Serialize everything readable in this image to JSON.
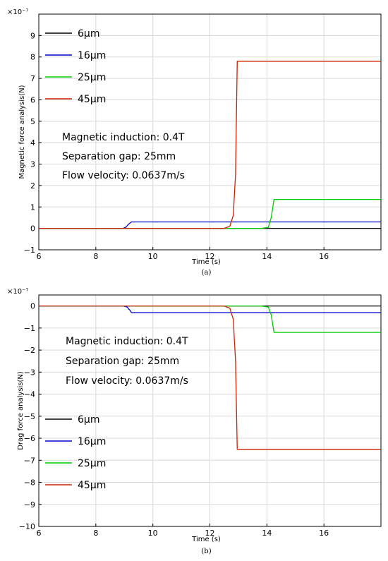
{
  "chart_data": [
    {
      "type": "line",
      "caption": "(a)",
      "xlabel": "Time (s)",
      "ylabel": "Magnetic force analysis(N)",
      "y_multiplier": "×10⁻⁷",
      "xlim": [
        6,
        18
      ],
      "ylim": [
        -1,
        10
      ],
      "xticks": [
        6,
        8,
        10,
        12,
        14,
        16
      ],
      "yticks": [
        -1,
        0,
        1,
        2,
        3,
        4,
        5,
        6,
        7,
        8,
        9
      ],
      "grid": true,
      "legend_position": "top-left",
      "annotations": [
        "Magnetic induction: 0.4T",
        "Separation gap: 25mm",
        "Flow velocity: 0.0637m/s"
      ],
      "series": [
        {
          "name": "6μm",
          "color": "#000000",
          "points": [
            [
              6,
              0
            ],
            [
              18,
              0
            ]
          ]
        },
        {
          "name": "16μm",
          "color": "#0000cc",
          "points": [
            [
              6,
              0
            ],
            [
              8.95,
              0
            ],
            [
              9.05,
              0.05
            ],
            [
              9.15,
              0.2
            ],
            [
              9.25,
              0.3
            ],
            [
              18,
              0.3
            ]
          ]
        },
        {
          "name": "25μm",
          "color": "#00cc00",
          "points": [
            [
              6,
              0
            ],
            [
              13.8,
              0
            ],
            [
              14.05,
              0.05
            ],
            [
              14.15,
              0.5
            ],
            [
              14.25,
              1.35
            ],
            [
              18,
              1.35
            ]
          ]
        },
        {
          "name": "45μm",
          "color": "#cc2200",
          "points": [
            [
              6,
              0
            ],
            [
              12.5,
              0
            ],
            [
              12.7,
              0.1
            ],
            [
              12.82,
              0.6
            ],
            [
              12.9,
              2.5
            ],
            [
              12.96,
              7.8
            ],
            [
              18,
              7.8
            ]
          ]
        }
      ]
    },
    {
      "type": "line",
      "caption": "(b)",
      "xlabel": "Time (s)",
      "ylabel": "Drag force analysis(N)",
      "y_multiplier": "×10⁻⁷",
      "xlim": [
        6,
        18
      ],
      "ylim": [
        -10,
        0.5
      ],
      "xticks": [
        6,
        8,
        10,
        12,
        14,
        16
      ],
      "yticks": [
        -10,
        -9,
        -8,
        -7,
        -6,
        -5,
        -4,
        -3,
        -2,
        -1,
        0
      ],
      "grid": true,
      "legend_position": "center-left",
      "annotations": [
        "Magnetic induction: 0.4T",
        "Separation gap: 25mm",
        "Flow velocity: 0.0637m/s"
      ],
      "series": [
        {
          "name": "6μm",
          "color": "#000000",
          "points": [
            [
              6,
              0
            ],
            [
              18,
              0
            ]
          ]
        },
        {
          "name": "16μm",
          "color": "#0000cc",
          "points": [
            [
              6,
              0
            ],
            [
              8.95,
              0
            ],
            [
              9.1,
              -0.05
            ],
            [
              9.2,
              -0.2
            ],
            [
              9.25,
              -0.3
            ],
            [
              18,
              -0.3
            ]
          ]
        },
        {
          "name": "25μm",
          "color": "#00cc00",
          "points": [
            [
              6,
              0
            ],
            [
              13.8,
              0
            ],
            [
              14.05,
              -0.05
            ],
            [
              14.15,
              -0.4
            ],
            [
              14.25,
              -1.2
            ],
            [
              18,
              -1.2
            ]
          ]
        },
        {
          "name": "45μm",
          "color": "#cc2200",
          "points": [
            [
              6,
              0
            ],
            [
              12.5,
              0
            ],
            [
              12.7,
              -0.1
            ],
            [
              12.82,
              -0.6
            ],
            [
              12.9,
              -2.5
            ],
            [
              12.96,
              -6.5
            ],
            [
              18,
              -6.5
            ]
          ]
        }
      ]
    }
  ]
}
